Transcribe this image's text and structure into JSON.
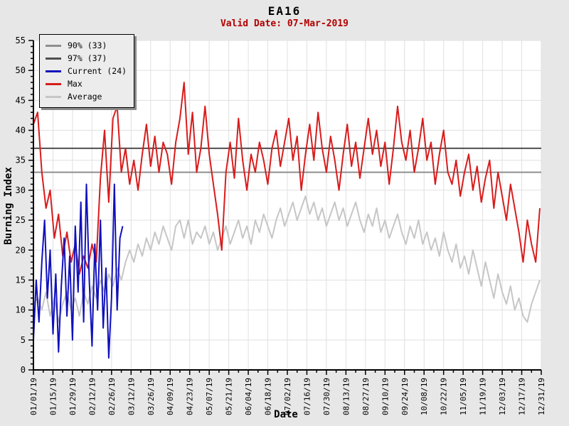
{
  "header": {
    "title": "EA16",
    "subtitle": "Valid Date: 07-Mar-2019"
  },
  "colors": {
    "background": "#e7e7e7",
    "plot_background": "#ffffff",
    "grid": "#e0e0e0",
    "axis": "#000000",
    "subtitle_text": "#b30000",
    "max": "#d91c1c",
    "current": "#1111bb",
    "average": "#c6c6c6",
    "p90": "#8f8f8f",
    "p97": "#4f4f4f"
  },
  "legend": {
    "items": [
      {
        "label": "90% (33)",
        "color_key": "p90"
      },
      {
        "label": "97% (37)",
        "color_key": "p97"
      },
      {
        "label": "Current (24)",
        "color_key": "current"
      },
      {
        "label": "Max",
        "color_key": "max"
      },
      {
        "label": "Average",
        "color_key": "average"
      }
    ]
  },
  "chart_data": {
    "type": "line",
    "title": "EA16",
    "subtitle": "Valid Date: 07-Mar-2019",
    "xlabel": "Date",
    "ylabel": "Burning Index",
    "ylim": [
      0,
      55
    ],
    "y_tick_major": 5,
    "y_tick_minor": 1,
    "grid": true,
    "legend_position": "top-left",
    "x_range_days": 364,
    "x_tick_interval_days": 14,
    "x_minor_tick_days": 7,
    "x_tick_labels": [
      "01/01/19",
      "01/15/19",
      "01/29/19",
      "02/12/19",
      "02/26/19",
      "03/12/19",
      "03/26/19",
      "04/09/19",
      "04/23/19",
      "05/07/19",
      "05/21/19",
      "06/04/19",
      "06/18/19",
      "07/02/19",
      "07/16/19",
      "07/30/19",
      "08/13/19",
      "08/27/19",
      "09/10/19",
      "09/24/19",
      "10/08/19",
      "10/22/19",
      "11/05/19",
      "11/19/19",
      "12/03/19",
      "12/17/19",
      "12/31/19"
    ],
    "y_tick_labels": [
      0,
      5,
      10,
      15,
      20,
      25,
      30,
      35,
      40,
      45,
      50,
      55
    ],
    "thresholds": [
      {
        "name": "90% (33)",
        "value": 33,
        "color_key": "p90"
      },
      {
        "name": "97% (37)",
        "value": 37,
        "color_key": "p97"
      }
    ],
    "series": [
      {
        "name": "Average",
        "color_key": "average",
        "day_start": 0,
        "day_step": 3,
        "values": [
          11,
          12,
          10,
          13,
          9,
          12,
          8,
          11,
          13,
          10,
          12,
          9,
          13,
          11,
          14,
          12,
          15,
          13,
          16,
          14,
          17,
          15,
          18,
          20,
          18,
          21,
          19,
          22,
          20,
          23,
          21,
          24,
          22,
          20,
          24,
          25,
          22,
          25,
          21,
          23,
          22,
          24,
          21,
          23,
          20,
          22,
          24,
          21,
          23,
          25,
          22,
          24,
          21,
          25,
          23,
          26,
          24,
          22,
          25,
          27,
          24,
          26,
          28,
          25,
          27,
          29,
          26,
          28,
          25,
          27,
          24,
          26,
          28,
          25,
          27,
          24,
          26,
          28,
          25,
          23,
          26,
          24,
          27,
          23,
          25,
          22,
          24,
          26,
          23,
          21,
          24,
          22,
          25,
          21,
          23,
          20,
          22,
          19,
          23,
          20,
          18,
          21,
          17,
          19,
          16,
          20,
          17,
          14,
          18,
          15,
          12,
          16,
          13,
          11,
          14,
          10,
          12,
          9,
          8,
          11,
          13,
          15
        ]
      },
      {
        "name": "Max",
        "color_key": "max",
        "day_start": 0,
        "day_step": 3,
        "values": [
          41,
          43,
          33,
          27,
          30,
          22,
          26,
          19,
          23,
          18,
          21,
          16,
          19,
          17,
          21,
          18,
          32,
          40,
          28,
          42,
          44,
          33,
          37,
          31,
          35,
          30,
          36,
          41,
          34,
          39,
          33,
          38,
          36,
          31,
          38,
          42,
          48,
          36,
          43,
          33,
          37,
          44,
          36,
          31,
          26,
          20,
          33,
          38,
          32,
          42,
          35,
          30,
          36,
          33,
          38,
          35,
          31,
          37,
          40,
          34,
          38,
          42,
          35,
          39,
          30,
          36,
          41,
          35,
          43,
          37,
          33,
          39,
          35,
          30,
          36,
          41,
          34,
          38,
          32,
          37,
          42,
          36,
          40,
          34,
          38,
          31,
          37,
          44,
          38,
          35,
          40,
          33,
          37,
          42,
          35,
          38,
          31,
          36,
          40,
          33,
          31,
          35,
          29,
          33,
          36,
          30,
          34,
          28,
          32,
          35,
          27,
          33,
          29,
          25,
          31,
          27,
          23,
          18,
          25,
          21,
          18,
          27
        ]
      },
      {
        "name": "Current (24)",
        "color_key": "current",
        "day_start": 0,
        "day_step": 2,
        "values": [
          5,
          15,
          8,
          18,
          25,
          12,
          20,
          6,
          16,
          3,
          14,
          22,
          9,
          19,
          5,
          24,
          13,
          28,
          8,
          31,
          15,
          4,
          21,
          10,
          25,
          7,
          17,
          2,
          12,
          31,
          10,
          22,
          24
        ]
      }
    ]
  }
}
